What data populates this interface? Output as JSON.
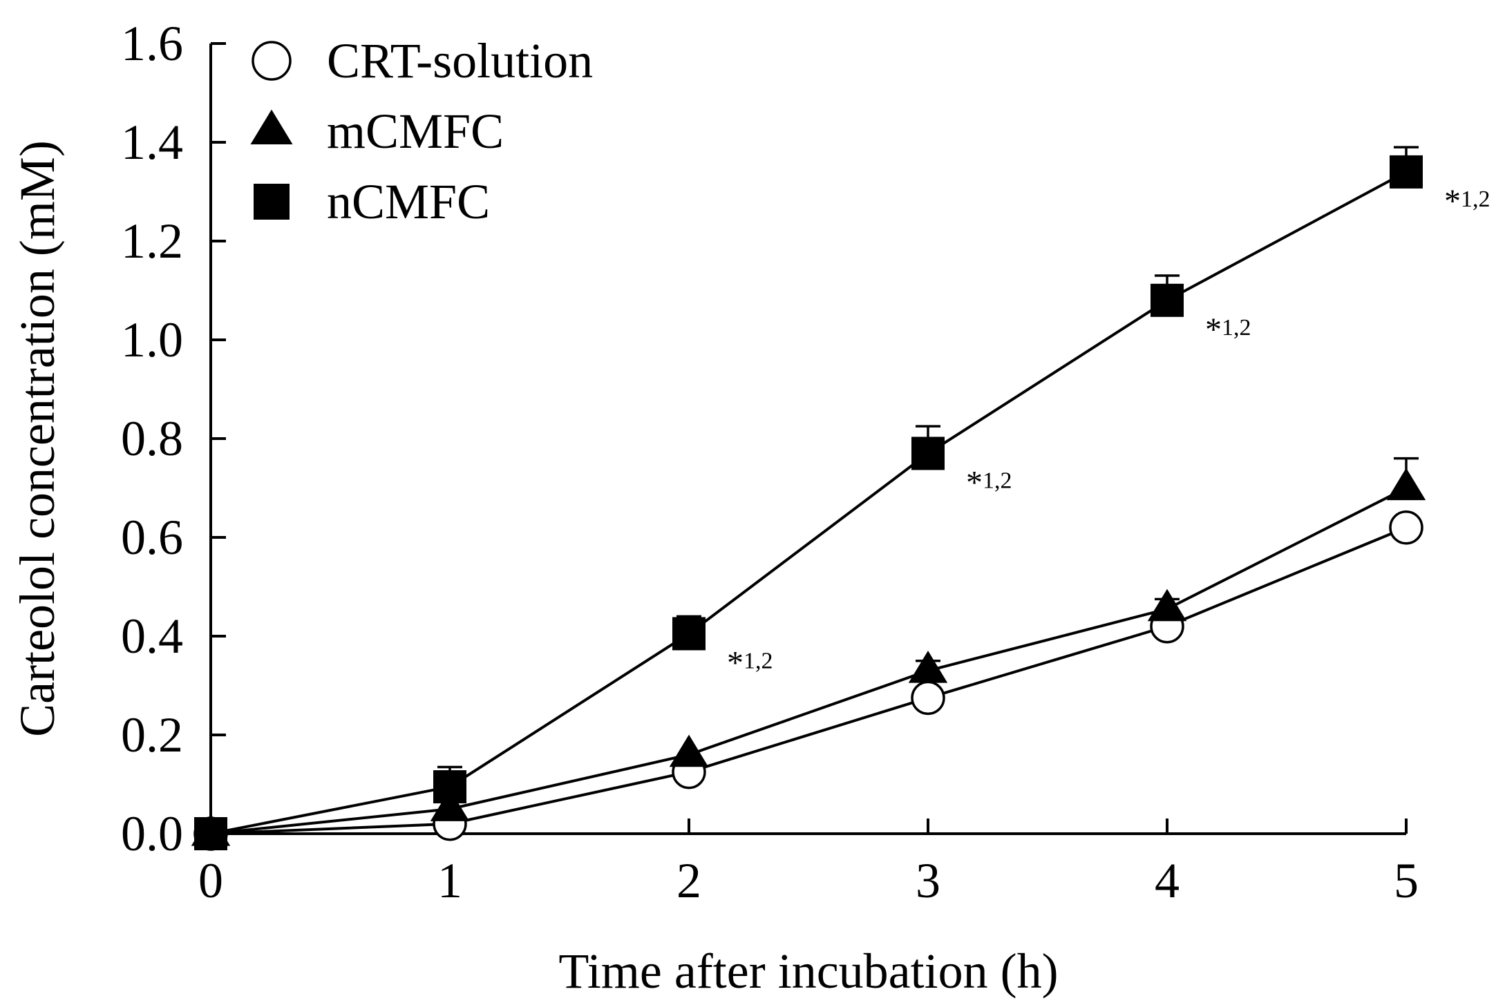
{
  "chart_data": {
    "type": "line",
    "title": "",
    "xlabel": "Time after incubation (h)",
    "ylabel": "Carteolol concentration (mM)",
    "xlim": [
      0,
      5
    ],
    "ylim": [
      0,
      1.6
    ],
    "x_ticks": [
      "0",
      "1",
      "2",
      "3",
      "4",
      "5"
    ],
    "y_ticks": [
      "0.0",
      "0.2",
      "0.4",
      "0.6",
      "0.8",
      "1.0",
      "1.2",
      "1.4",
      "1.6"
    ],
    "grid": false,
    "legend_position": "top-left",
    "x": [
      0,
      1,
      2,
      3,
      4,
      5
    ],
    "series": [
      {
        "name": "CRT-solution",
        "marker": "circle-open",
        "values": [
          0.0,
          0.02,
          0.125,
          0.275,
          0.42,
          0.62
        ],
        "errors": [
          0,
          0,
          0,
          0,
          0,
          0
        ]
      },
      {
        "name": "mCMFC",
        "marker": "triangle-filled",
        "values": [
          0.0,
          0.05,
          0.16,
          0.33,
          0.455,
          0.7
        ],
        "errors": [
          0,
          0,
          0,
          0.02,
          0.02,
          0.06
        ]
      },
      {
        "name": "nCMFC",
        "marker": "square-filled",
        "values": [
          0.0,
          0.095,
          0.405,
          0.77,
          1.08,
          1.34
        ],
        "errors": [
          0,
          0.04,
          0.035,
          0.055,
          0.05,
          0.05
        ]
      }
    ],
    "annotations": [
      {
        "x": 2,
        "series": "nCMFC",
        "star": "*",
        "text": "1,2"
      },
      {
        "x": 3,
        "series": "nCMFC",
        "star": "*",
        "text": "1,2"
      },
      {
        "x": 4,
        "series": "nCMFC",
        "star": "*",
        "text": "1,2"
      },
      {
        "x": 5,
        "series": "nCMFC",
        "star": "*",
        "text": "1,2"
      }
    ],
    "colors": {
      "line": "#000000",
      "marker_fill": "#000000",
      "open_marker_fill": "#ffffff",
      "background": "#ffffff"
    }
  }
}
